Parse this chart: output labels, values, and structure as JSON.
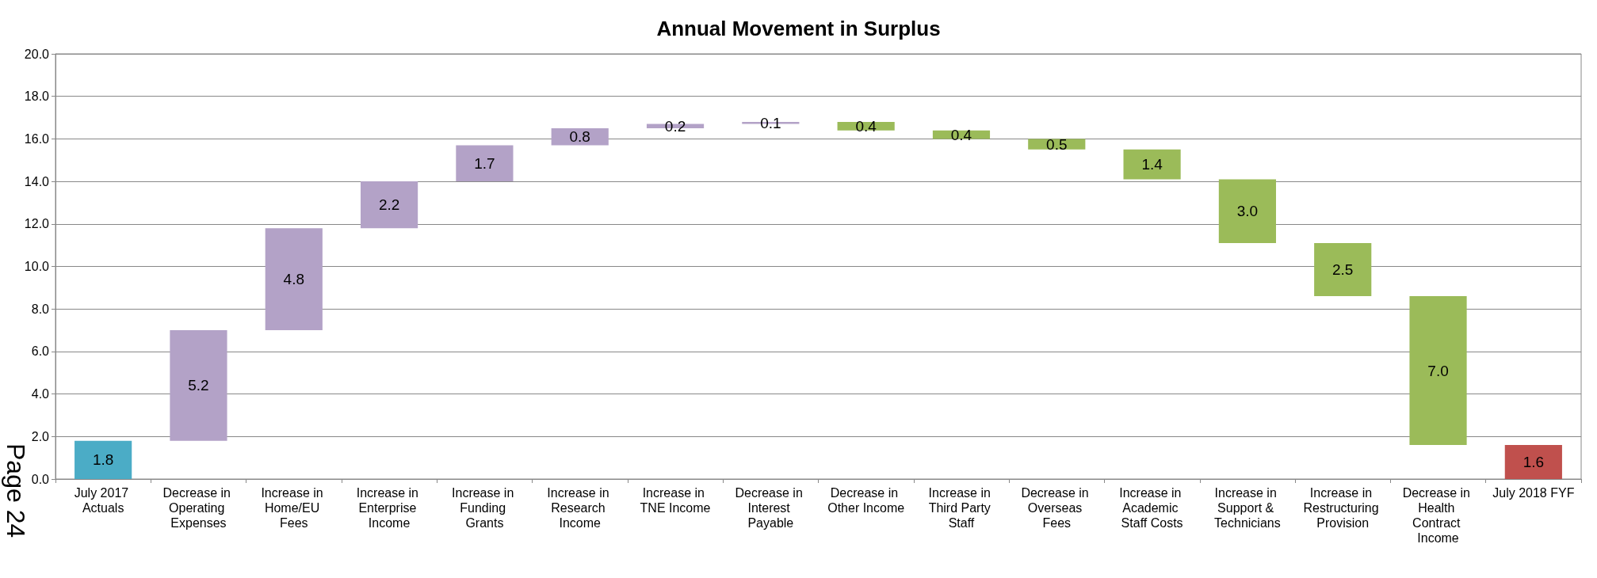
{
  "chart_data": {
    "type": "bar",
    "title": "Annual Movement in Surplus",
    "categories": [
      "July 2017 Actuals",
      "Decrease in Operating Expenses",
      "Increase in Home/EU Fees",
      "Increase in Enterprise Income",
      "Increase in Funding Grants",
      "Increase in Research Income",
      "Increase in TNE Income",
      "Decrease in Interest Payable",
      "Decrease in Other Income",
      "Increase in Third Party Staff",
      "Decrease in Overseas Fees",
      "Increase in Academic Staff Costs",
      "Increase in Support & Technicians",
      "Increase in Restructuring Provision",
      "Decrease in Health Contract Income",
      "July 2018 FYF"
    ],
    "values": [
      1.8,
      5.2,
      4.8,
      2.2,
      1.7,
      0.8,
      0.2,
      0.1,
      0.4,
      0.4,
      0.5,
      1.4,
      3.0,
      2.5,
      7.0,
      1.6
    ],
    "base": [
      0,
      1.8,
      7.0,
      11.8,
      14.0,
      15.7,
      16.5,
      16.7,
      16.4,
      16.0,
      15.5,
      14.1,
      11.1,
      8.6,
      1.6,
      0
    ],
    "colors": [
      "#4bacc6",
      "#b3a2c7",
      "#b3a2c7",
      "#b3a2c7",
      "#b3a2c7",
      "#b3a2c7",
      "#b3a2c7",
      "#b3a2c7",
      "#9bbb59",
      "#9bbb59",
      "#9bbb59",
      "#9bbb59",
      "#9bbb59",
      "#9bbb59",
      "#9bbb59",
      "#c0504d"
    ],
    "ylim": [
      0,
      20
    ],
    "yticks": [
      {
        "value": 0,
        "label": "0.0"
      },
      {
        "value": 2,
        "label": "2.0"
      },
      {
        "value": 4,
        "label": "4.0"
      },
      {
        "value": 6,
        "label": "6.0"
      },
      {
        "value": 8,
        "label": "8.0"
      },
      {
        "value": 10,
        "label": "10.0"
      },
      {
        "value": 12,
        "label": "12.0"
      },
      {
        "value": 14,
        "label": "14.0"
      },
      {
        "value": 16,
        "label": "16.0"
      },
      {
        "value": 18,
        "label": "18.0"
      },
      {
        "value": 20,
        "label": "20.0"
      }
    ],
    "value_labels": [
      "1.8",
      "5.2",
      "4.8",
      "2.2",
      "1.7",
      "0.8",
      "0.2",
      "0.1",
      "0.4",
      "0.4",
      "0.5",
      "1.4",
      "3.0",
      "2.5",
      "7.0",
      "1.6"
    ],
    "grid": true,
    "annotations": [
      "Page 24"
    ]
  }
}
